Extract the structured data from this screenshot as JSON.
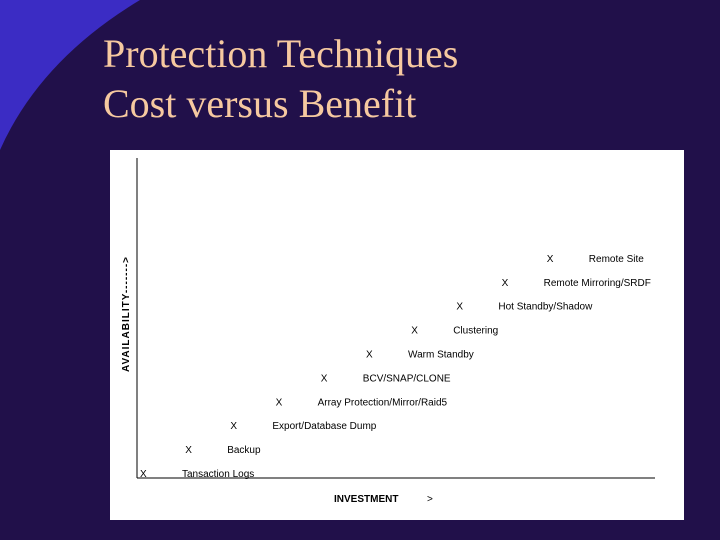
{
  "slide": {
    "title_line1": "Protection Techniques",
    "title_line2": "Cost versus Benefit",
    "background_color": "#21104a",
    "arc_color": "#3b2cc4",
    "title_color": "#f6c9a0"
  },
  "chart_data": {
    "type": "scatter",
    "xlabel": "INVESTMENT",
    "xlabel_arrow": ">",
    "ylabel": "AVAILABILITY------->",
    "marker": "X",
    "grid": false,
    "legend": "none",
    "points": [
      {
        "rank": 1,
        "label": "Tansaction Logs"
      },
      {
        "rank": 2,
        "label": "Backup"
      },
      {
        "rank": 3,
        "label": "Export/Database Dump"
      },
      {
        "rank": 4,
        "label": "Array Protection/Mirror/Raid5"
      },
      {
        "rank": 5,
        "label": "BCV/SNAP/CLONE"
      },
      {
        "rank": 6,
        "label": "Warm Standby"
      },
      {
        "rank": 7,
        "label": "Clustering"
      },
      {
        "rank": 8,
        "label": "Hot Standby/Shadow"
      },
      {
        "rank": 9,
        "label": "Remote Mirroring/SRDF"
      },
      {
        "rank": 10,
        "label": "Remote Site"
      }
    ]
  }
}
